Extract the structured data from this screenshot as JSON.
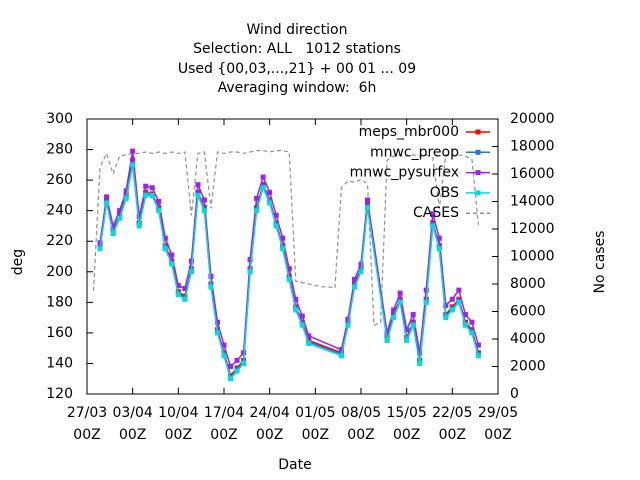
{
  "chart_data": {
    "type": "line",
    "title": "Wind direction",
    "subtitle": [
      "Selection: ALL   1012 stations",
      "Used {00,03,...,21} + 00 01 ... 09",
      "Averaging window:  6h"
    ],
    "x_label": "Date",
    "y_label": "deg",
    "y2_label": "No cases",
    "xlim": [
      "27/03 00Z",
      "29/05 00Z"
    ],
    "xticks": [
      "27/03 00Z",
      "03/04 00Z",
      "10/04 00Z",
      "17/04 00Z",
      "24/04 00Z",
      "01/05 00Z",
      "08/05 00Z",
      "15/05 00Z",
      "22/05 00Z",
      "29/05 00Z"
    ],
    "ylim": [
      120,
      300
    ],
    "yticks": [
      120,
      140,
      160,
      180,
      200,
      220,
      240,
      260,
      280,
      300
    ],
    "y2lim": [
      0,
      20000
    ],
    "y2ticks": [
      0,
      2000,
      4000,
      6000,
      8000,
      10000,
      12000,
      14000,
      16000,
      18000,
      20000
    ],
    "legend": "top-right",
    "x": [
      "29/03 00Z",
      "30/03 00Z",
      "31/03 00Z",
      "01/04 00Z",
      "02/04 00Z",
      "03/04 00Z",
      "04/04 00Z",
      "05/04 00Z",
      "06/04 00Z",
      "07/04 00Z",
      "08/04 00Z",
      "09/04 00Z",
      "10/04 00Z",
      "11/04 00Z",
      "12/04 00Z",
      "13/04 00Z",
      "14/04 00Z",
      "15/04 00Z",
      "16/04 00Z",
      "17/04 00Z",
      "18/04 00Z",
      "19/04 00Z",
      "20/04 00Z",
      "21/04 00Z",
      "22/04 00Z",
      "23/04 00Z",
      "24/04 00Z",
      "25/04 00Z",
      "26/04 00Z",
      "27/04 00Z",
      "28/04 00Z",
      "29/04 00Z",
      "30/04 00Z",
      "05/05 00Z",
      "06/05 00Z",
      "07/05 00Z",
      "08/05 00Z",
      "09/05 00Z",
      "12/05 00Z",
      "13/05 00Z",
      "14/05 00Z",
      "15/05 00Z",
      "16/05 00Z",
      "17/05 00Z",
      "18/05 00Z",
      "19/05 00Z",
      "20/05 00Z",
      "21/05 00Z",
      "22/05 00Z",
      "23/05 00Z",
      "24/05 00Z",
      "25/05 00Z",
      "26/05 00Z"
    ],
    "series": [
      {
        "name": "meps_mbr000",
        "color": "#ff0000",
        "marker": true,
        "values": [
          217,
          247,
          227,
          237,
          250,
          273,
          232,
          252,
          251,
          242,
          217,
          207,
          187,
          184,
          202,
          252,
          242,
          192,
          162,
          147,
          132,
          137,
          142,
          202,
          242,
          257,
          247,
          232,
          217,
          197,
          177,
          167,
          155,
          147,
          167,
          192,
          202,
          244,
          157,
          172,
          182,
          157,
          167,
          142,
          182,
          232,
          217,
          172,
          177,
          182,
          167,
          162,
          147
        ]
      },
      {
        "name": "mnwc_preop",
        "color": "#1f78d6",
        "marker": true,
        "values": [
          216,
          246,
          226,
          236,
          249,
          271,
          231,
          251,
          250,
          241,
          216,
          206,
          186,
          183,
          201,
          251,
          241,
          191,
          161,
          146,
          131,
          136,
          141,
          201,
          241,
          256,
          246,
          231,
          216,
          196,
          176,
          166,
          154,
          146,
          166,
          191,
          201,
          243,
          156,
          171,
          181,
          156,
          166,
          141,
          181,
          231,
          216,
          171,
          176,
          181,
          166,
          161,
          146
        ]
      },
      {
        "name": "mnwc_pysurfex",
        "color": "#a020f0",
        "marker": true,
        "values": [
          219,
          249,
          230,
          240,
          253,
          279,
          236,
          256,
          255,
          246,
          222,
          211,
          191,
          189,
          207,
          257,
          247,
          197,
          167,
          152,
          138,
          142,
          147,
          208,
          248,
          262,
          252,
          237,
          222,
          202,
          182,
          171,
          158,
          149,
          169,
          195,
          205,
          247,
          160,
          175,
          186,
          162,
          172,
          147,
          188,
          238,
          222,
          178,
          182,
          188,
          172,
          167,
          152
        ]
      },
      {
        "name": "OBS",
        "color": "#00dcdc",
        "marker": true,
        "values": [
          215,
          245,
          225,
          235,
          248,
          270,
          230,
          250,
          250,
          240,
          215,
          205,
          185,
          182,
          200,
          250,
          240,
          190,
          160,
          145,
          130,
          135,
          140,
          200,
          240,
          255,
          245,
          230,
          215,
          195,
          175,
          165,
          153,
          145,
          165,
          190,
          200,
          242,
          155,
          170,
          180,
          155,
          165,
          140,
          180,
          230,
          215,
          170,
          175,
          180,
          165,
          160,
          145
        ]
      },
      {
        "name": "CASES",
        "color": "#909090",
        "marker": false,
        "dashed": true,
        "axis": "y2",
        "x": [
          "28/03 00Z",
          "29/03 00Z",
          "30/03 00Z",
          "31/03 00Z",
          "01/04 00Z",
          "02/04 00Z",
          "03/04 00Z",
          "04/04 00Z",
          "05/04 00Z",
          "06/04 00Z",
          "07/04 00Z",
          "08/04 00Z",
          "09/04 00Z",
          "10/04 00Z",
          "11/04 00Z",
          "12/04 00Z",
          "13/04 00Z",
          "14/04 00Z",
          "15/04 00Z",
          "16/04 00Z",
          "17/04 00Z",
          "18/04 00Z",
          "19/04 00Z",
          "20/04 00Z",
          "21/04 00Z",
          "22/04 00Z",
          "23/04 00Z",
          "24/04 00Z",
          "25/04 00Z",
          "26/04 00Z",
          "27/04 00Z",
          "28/04 00Z",
          "29/04 00Z",
          "30/04 00Z",
          "01/05 00Z",
          "02/05 00Z",
          "03/05 00Z",
          "04/05 00Z",
          "05/05 00Z",
          "06/05 00Z",
          "07/05 00Z",
          "08/05 00Z",
          "09/05 00Z",
          "10/05 00Z",
          "11/05 00Z",
          "12/05 00Z",
          "13/05 00Z",
          "14/05 00Z",
          "15/05 00Z",
          "16/05 00Z",
          "17/05 00Z",
          "18/05 00Z",
          "19/05 00Z",
          "20/05 00Z",
          "21/05 00Z",
          "22/05 00Z",
          "23/05 00Z",
          "24/05 00Z",
          "25/05 00Z",
          "26/05 00Z"
        ],
        "values": [
          7500,
          16500,
          17500,
          16000,
          17300,
          17400,
          17500,
          17500,
          17600,
          17500,
          17600,
          17500,
          17600,
          17500,
          17600,
          13000,
          17500,
          17600,
          13500,
          17600,
          17500,
          17600,
          17600,
          17500,
          17600,
          17700,
          17700,
          17600,
          17700,
          17700,
          17600,
          8200,
          8100,
          8000,
          7900,
          7800,
          7800,
          7700,
          15000,
          15500,
          15400,
          15600,
          15300,
          5000,
          5200,
          17000,
          17300,
          17400,
          17300,
          17400,
          17300,
          17400,
          17200,
          13500,
          17400,
          17300,
          17400,
          17300,
          17100,
          12300
        ]
      }
    ]
  }
}
